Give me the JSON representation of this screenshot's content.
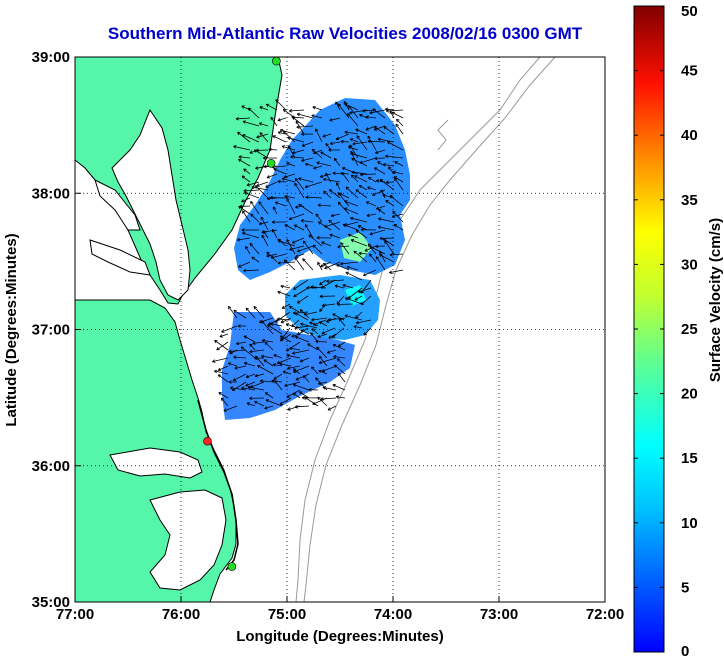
{
  "chart_data": {
    "type": "map-vector-field",
    "title": "Southern Mid-Atlantic Raw Velocities 2008/02/16 0300 GMT",
    "xlabel": "Longitude (Degrees:Minutes)",
    "ylabel": "Latitude (Degrees:Minutes)",
    "xlim": [
      -77,
      -72
    ],
    "ylim": [
      35,
      39
    ],
    "x_ticks": [
      {
        "value": -77,
        "label": "77:00"
      },
      {
        "value": -76,
        "label": "76:00"
      },
      {
        "value": -75,
        "label": "75:00"
      },
      {
        "value": -74,
        "label": "74:00"
      },
      {
        "value": -73,
        "label": "73:00"
      },
      {
        "value": -72,
        "label": "72:00"
      }
    ],
    "y_ticks": [
      {
        "value": 35,
        "label": "35:00"
      },
      {
        "value": 36,
        "label": "36:00"
      },
      {
        "value": 37,
        "label": "37:00"
      },
      {
        "value": 38,
        "label": "38:00"
      },
      {
        "value": 39,
        "label": "39:00"
      }
    ],
    "grid": "dotted",
    "colorbar": {
      "label": "Surface Velocity (cm/s)",
      "min": 0,
      "max": 50,
      "ticks": [
        0,
        5,
        10,
        15,
        20,
        25,
        30,
        35,
        40,
        45,
        50
      ],
      "colormap": "jet"
    },
    "radar_sites": [
      {
        "lon": -75.1,
        "lat": 38.97,
        "color": "#22dd22"
      },
      {
        "lon": -75.15,
        "lat": 38.22,
        "color": "#22dd22"
      },
      {
        "lon": -75.75,
        "lat": 36.18,
        "color": "#ff2222"
      },
      {
        "lon": -75.52,
        "lat": 35.26,
        "color": "#22dd22"
      }
    ],
    "land_color": "#55f5aa",
    "coast_color": "#000000",
    "bathymetry_color": "#999999"
  }
}
